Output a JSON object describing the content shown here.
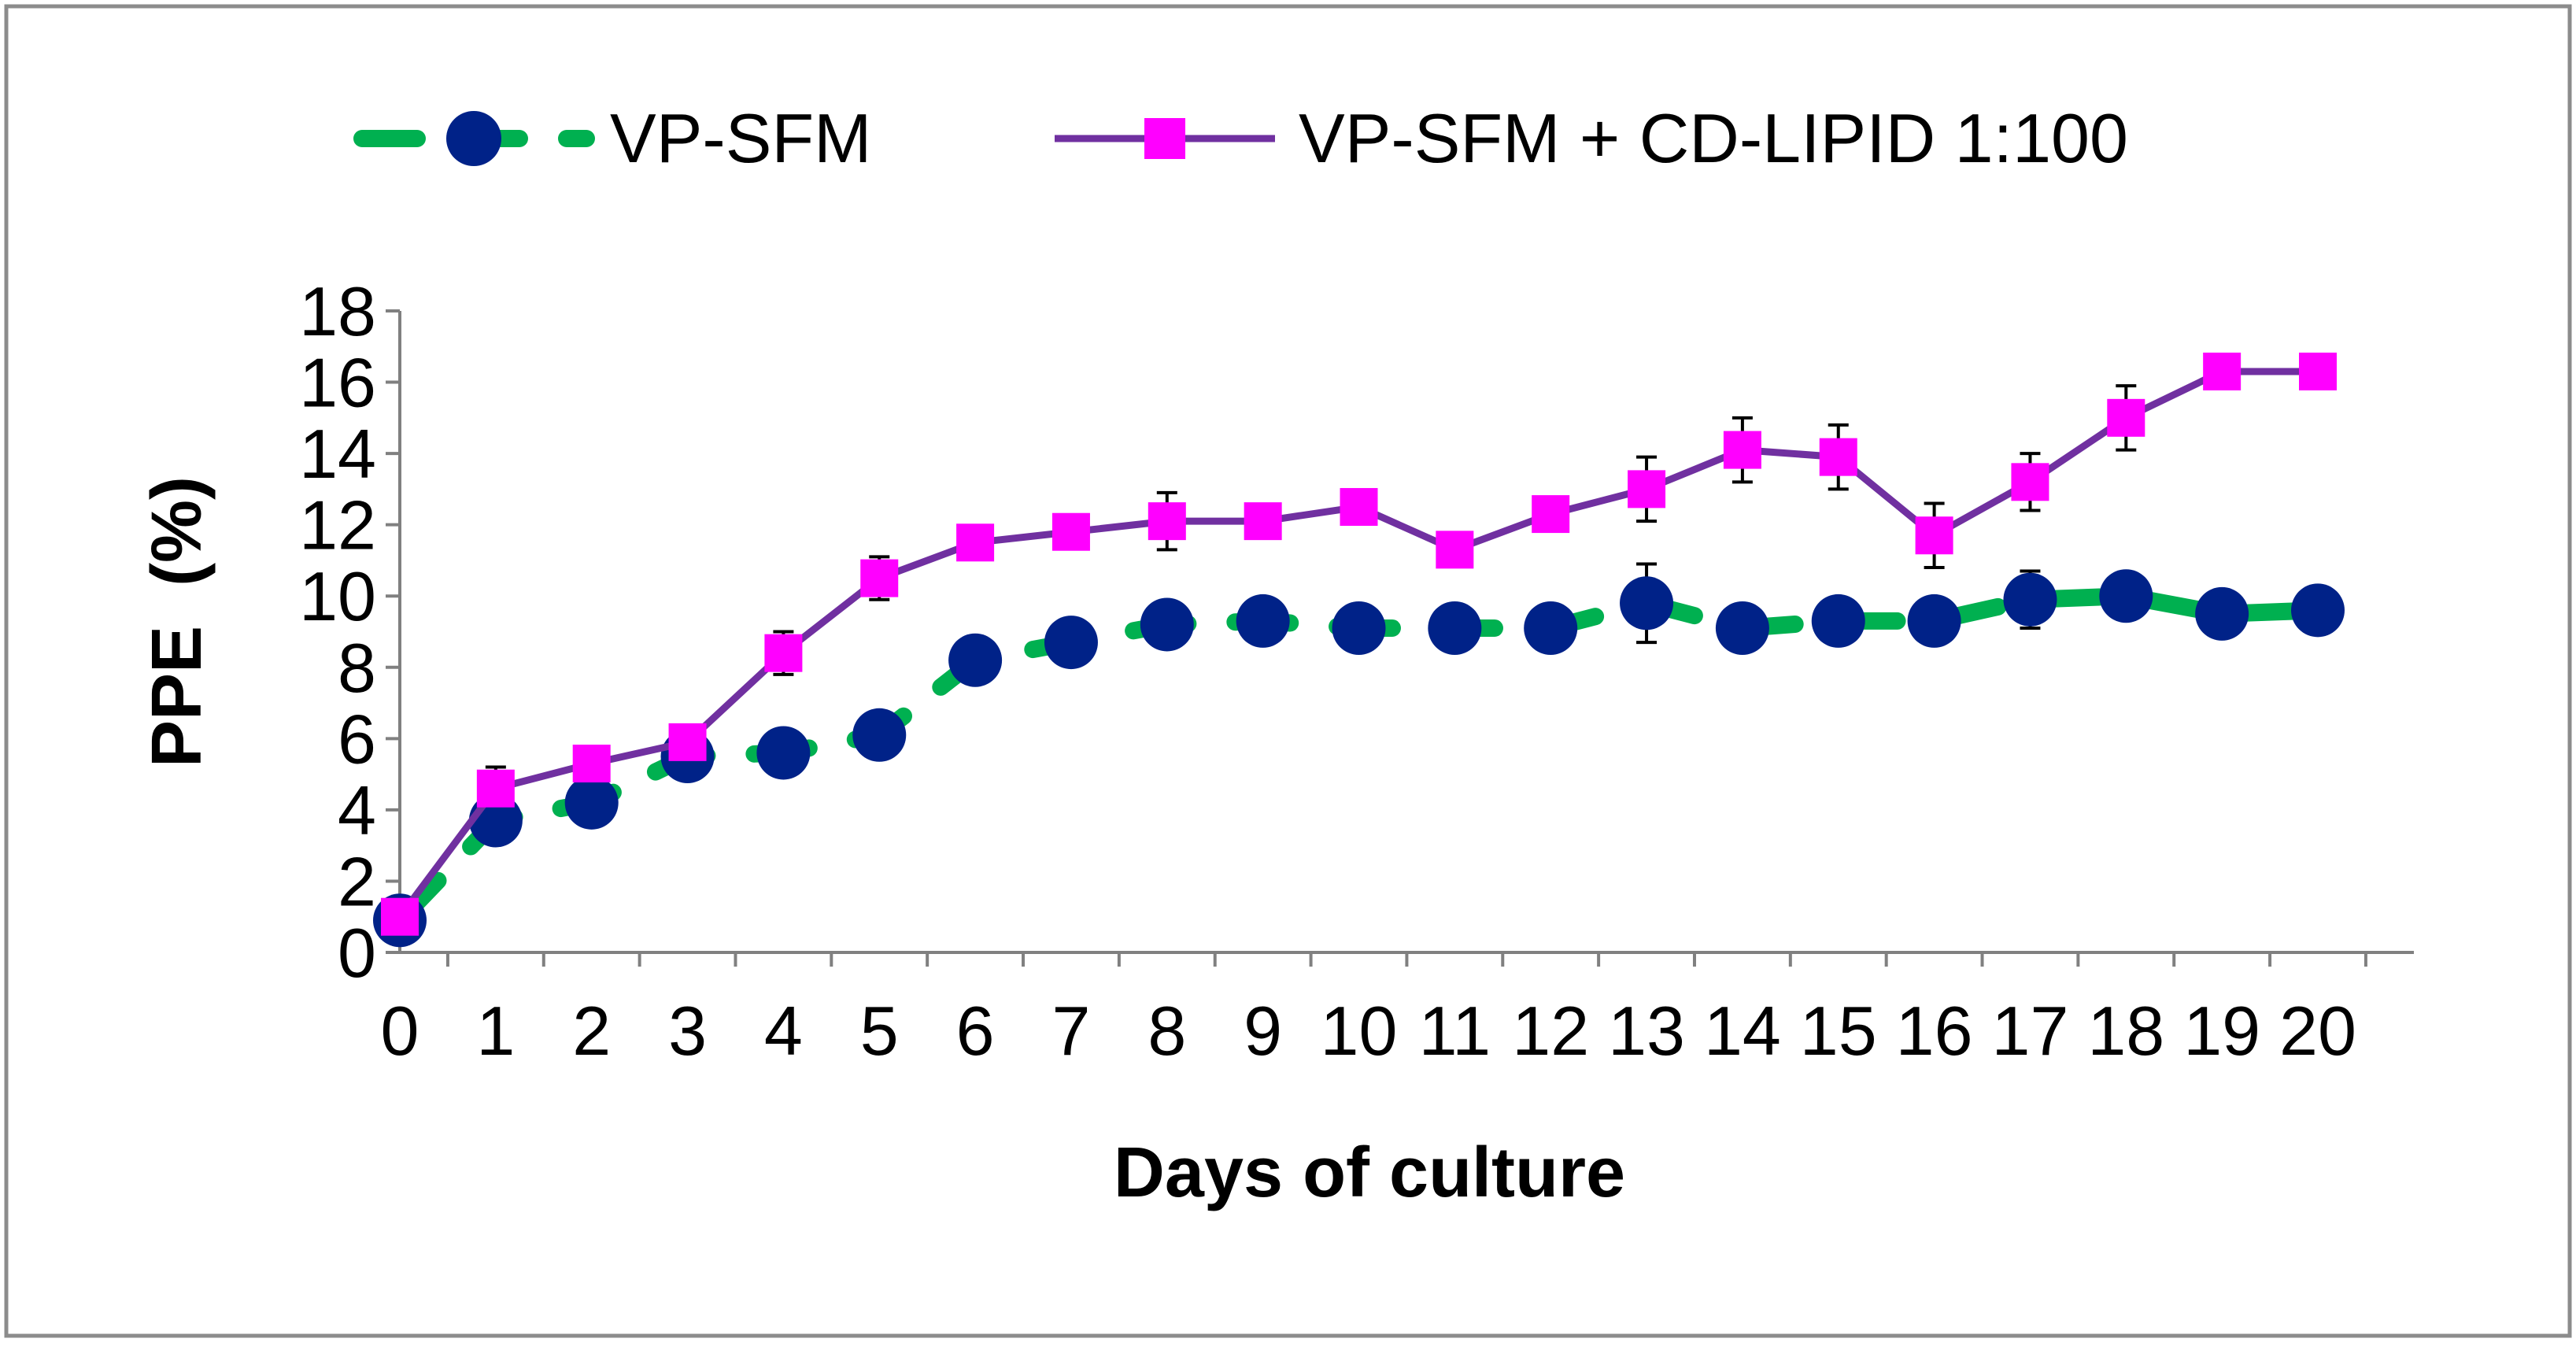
{
  "chart_data": {
    "type": "line",
    "title": "",
    "xlabel": "Days of culture",
    "ylabel": "PPE  (%)",
    "x": [
      0,
      1,
      2,
      3,
      4,
      5,
      6,
      7,
      8,
      9,
      10,
      11,
      12,
      13,
      14,
      15,
      16,
      17,
      18,
      19,
      20
    ],
    "xlim": [
      0,
      20
    ],
    "ylim": [
      0,
      18
    ],
    "yticks": [
      0,
      2,
      4,
      6,
      8,
      10,
      12,
      14,
      16,
      18
    ],
    "grid": false,
    "legend_position": "top",
    "series": [
      {
        "name": "VP-SFM",
        "line_color": "#00B050",
        "marker_color": "#002288",
        "line_style": "dashed",
        "marker": "circle",
        "values": [
          0.9,
          3.7,
          4.2,
          5.5,
          5.6,
          6.1,
          8.2,
          8.7,
          9.2,
          9.3,
          9.1,
          9.1,
          9.1,
          9.8,
          9.1,
          9.3,
          9.3,
          9.9,
          10.0,
          9.5,
          9.6
        ],
        "errors": [
          0.1,
          0.2,
          0.2,
          0.2,
          0.2,
          0.2,
          0.2,
          0.2,
          0.2,
          0.2,
          0.2,
          0.2,
          0.2,
          1.1,
          0.2,
          0.2,
          0.2,
          0.8,
          0.3,
          0.6,
          0.2
        ]
      },
      {
        "name": "VP-SFM + CD-LIPID 1:100",
        "line_color": "#7030A0",
        "marker_color": "#FF00FF",
        "line_style": "solid",
        "marker": "square",
        "values": [
          1.0,
          4.6,
          5.3,
          5.9,
          8.4,
          10.5,
          11.5,
          11.8,
          12.1,
          12.1,
          12.5,
          11.3,
          12.3,
          13.0,
          14.1,
          13.9,
          11.7,
          13.2,
          15.0,
          16.3,
          16.3
        ],
        "errors": [
          0.1,
          0.6,
          0.2,
          0.2,
          0.6,
          0.6,
          0.2,
          0.2,
          0.8,
          0.2,
          0.2,
          0.2,
          0.2,
          0.9,
          0.9,
          0.9,
          0.9,
          0.8,
          0.9,
          0.2,
          0.2
        ]
      }
    ]
  }
}
